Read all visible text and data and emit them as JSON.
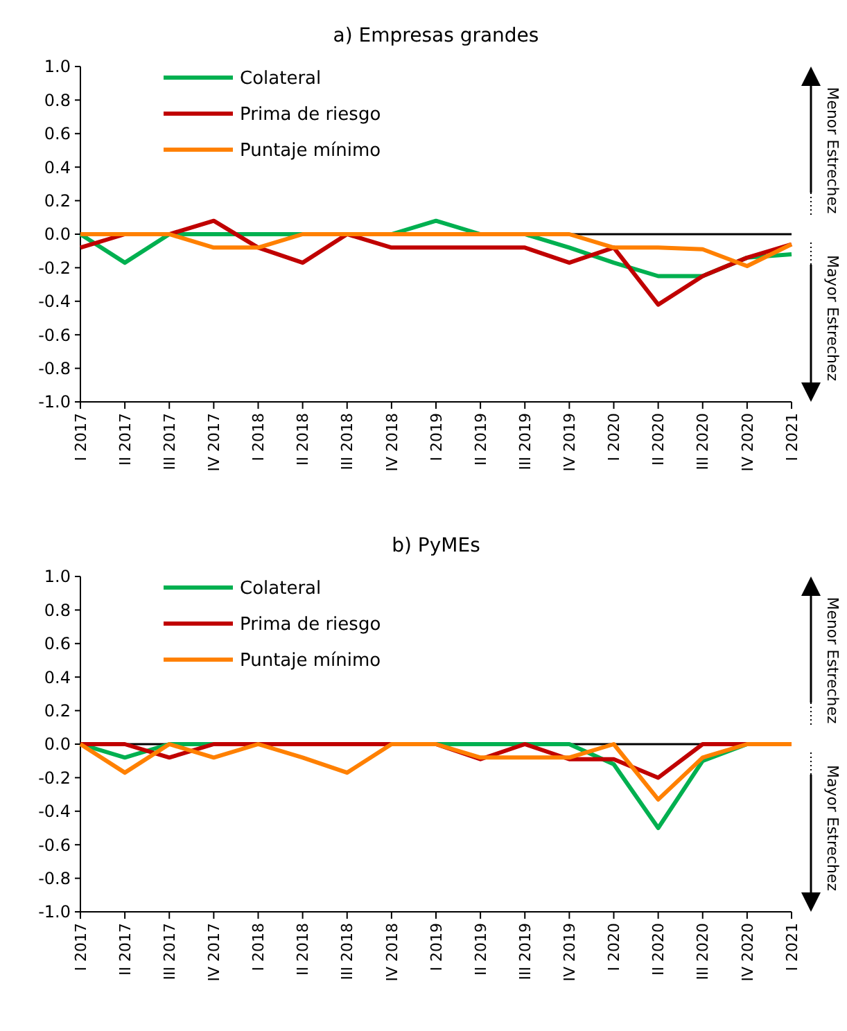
{
  "chart_data": [
    {
      "type": "line",
      "title": "a) Empresas grandes",
      "categories": [
        "I 2017",
        "II 2017",
        "III 2017",
        "IV 2017",
        "I 2018",
        "II 2018",
        "III 2018",
        "IV 2018",
        "I 2019",
        "II 2019",
        "III 2019",
        "IV 2019",
        "I 2020",
        "II 2020",
        "III 2020",
        "IV 2020",
        "I 2021"
      ],
      "series": [
        {
          "name": "Colateral",
          "color": "#00b050",
          "values": [
            0,
            -0.17,
            0,
            0,
            0,
            0,
            0,
            0,
            0.08,
            0,
            0,
            -0.08,
            -0.17,
            -0.25,
            -0.25,
            -0.14,
            -0.12
          ]
        },
        {
          "name": "Prima de riesgo",
          "color": "#c00000",
          "values": [
            -0.08,
            0,
            0,
            0.08,
            -0.08,
            -0.17,
            0,
            -0.08,
            -0.08,
            -0.08,
            -0.08,
            -0.17,
            -0.08,
            -0.42,
            -0.25,
            -0.14,
            -0.06
          ]
        },
        {
          "name": "Puntaje mínimo",
          "color": "#ff8000",
          "values": [
            0,
            0,
            0,
            -0.08,
            -0.08,
            0,
            0,
            0,
            0,
            0,
            0,
            0,
            -0.08,
            -0.08,
            -0.09,
            -0.19,
            -0.06
          ]
        }
      ],
      "ylim": [
        -1,
        1
      ],
      "yticks": [
        {
          "value": -1,
          "label": "-1.0"
        },
        {
          "value": -0.8,
          "label": "-0.8"
        },
        {
          "value": -0.6,
          "label": "-0.6"
        },
        {
          "value": -0.4,
          "label": "-0.4"
        },
        {
          "value": -0.2,
          "label": "-0.2"
        },
        {
          "value": 0,
          "label": "0.0"
        },
        {
          "value": 0.2,
          "label": "0.2"
        },
        {
          "value": 0.4,
          "label": "0.4"
        },
        {
          "value": 0.6,
          "label": "0.6"
        },
        {
          "value": 0.8,
          "label": "0.8"
        },
        {
          "value": 1,
          "label": "1.0"
        }
      ],
      "ref_lines": [
        {
          "axis": "y",
          "value": 0,
          "color": "#000000"
        }
      ],
      "annotations": [
        "Menor Estrechez",
        "Mayor Estrechez"
      ],
      "legend": "top left",
      "grid": false,
      "marker": "none",
      "line_style": "solid"
    },
    {
      "type": "line",
      "title": "b) PyMEs",
      "categories": [
        "I 2017",
        "II 2017",
        "III 2017",
        "IV 2017",
        "I 2018",
        "II 2018",
        "III 2018",
        "IV 2018",
        "I 2019",
        "II 2019",
        "III 2019",
        "IV 2019",
        "I 2020",
        "II 2020",
        "III 2020",
        "IV 2020",
        "I 2021"
      ],
      "series": [
        {
          "name": "Colateral",
          "color": "#00b050",
          "values": [
            0,
            -0.08,
            0,
            0,
            0,
            0,
            0,
            0,
            0,
            0,
            0,
            0,
            -0.12,
            -0.5,
            -0.1,
            0,
            0
          ]
        },
        {
          "name": "Prima de riesgo",
          "color": "#c00000",
          "values": [
            0,
            0,
            -0.08,
            0,
            0,
            0,
            0,
            0,
            0,
            -0.09,
            0,
            -0.09,
            -0.09,
            -0.2,
            0,
            0,
            0
          ]
        },
        {
          "name": "Puntaje mínimo",
          "color": "#ff8000",
          "values": [
            0,
            -0.17,
            0,
            -0.08,
            0,
            -0.08,
            -0.17,
            0,
            0,
            -0.08,
            -0.08,
            -0.08,
            0,
            -0.33,
            -0.08,
            0,
            0
          ]
        }
      ],
      "ylim": [
        -1,
        1
      ],
      "yticks": [
        {
          "value": -1,
          "label": "-1.0"
        },
        {
          "value": -0.8,
          "label": "-0.8"
        },
        {
          "value": -0.6,
          "label": "-0.6"
        },
        {
          "value": -0.4,
          "label": "-0.4"
        },
        {
          "value": -0.2,
          "label": "-0.2"
        },
        {
          "value": 0,
          "label": "0.0"
        },
        {
          "value": 0.2,
          "label": "0.2"
        },
        {
          "value": 0.4,
          "label": "0.4"
        },
        {
          "value": 0.6,
          "label": "0.6"
        },
        {
          "value": 0.8,
          "label": "0.8"
        },
        {
          "value": 1,
          "label": "1.0"
        }
      ],
      "ref_lines": [
        {
          "axis": "y",
          "value": 0,
          "color": "#000000"
        }
      ],
      "annotations": [
        "Menor Estrechez",
        "Mayor Estrechez"
      ],
      "legend": "top left",
      "grid": false,
      "marker": "none",
      "line_style": "solid"
    }
  ]
}
